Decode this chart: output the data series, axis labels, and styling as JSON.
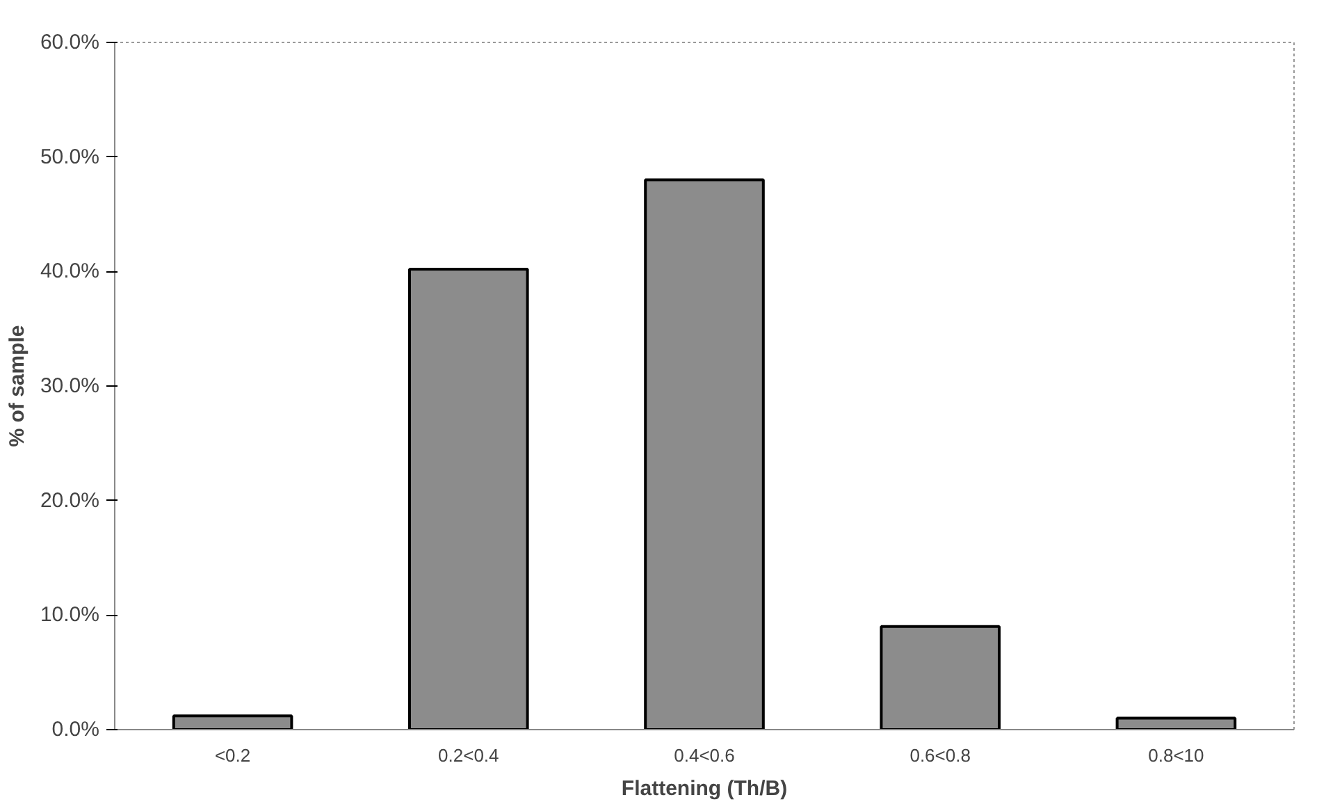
{
  "chart_data": {
    "type": "bar",
    "xlabel": "Flattening (Th/B)",
    "ylabel": "% of sample",
    "categories": [
      "<0.2",
      "0.2<0.4",
      "0.4<0.6",
      "0.6<0.8",
      "0.8<10"
    ],
    "values": [
      1.2,
      40.2,
      48.0,
      9.0,
      1.0
    ],
    "color": "#8c8c8c",
    "ylim": [
      0,
      60
    ],
    "yticks": [
      {
        "value": 0,
        "label": "0.0%"
      },
      {
        "value": 10,
        "label": "10.0%"
      },
      {
        "value": 20,
        "label": "20.0%"
      },
      {
        "value": 30,
        "label": "30.0%"
      },
      {
        "value": 40,
        "label": "40.0%"
      },
      {
        "value": 50,
        "label": "50.0%"
      },
      {
        "value": 60,
        "label": "60.0%"
      }
    ],
    "grid": false
  }
}
